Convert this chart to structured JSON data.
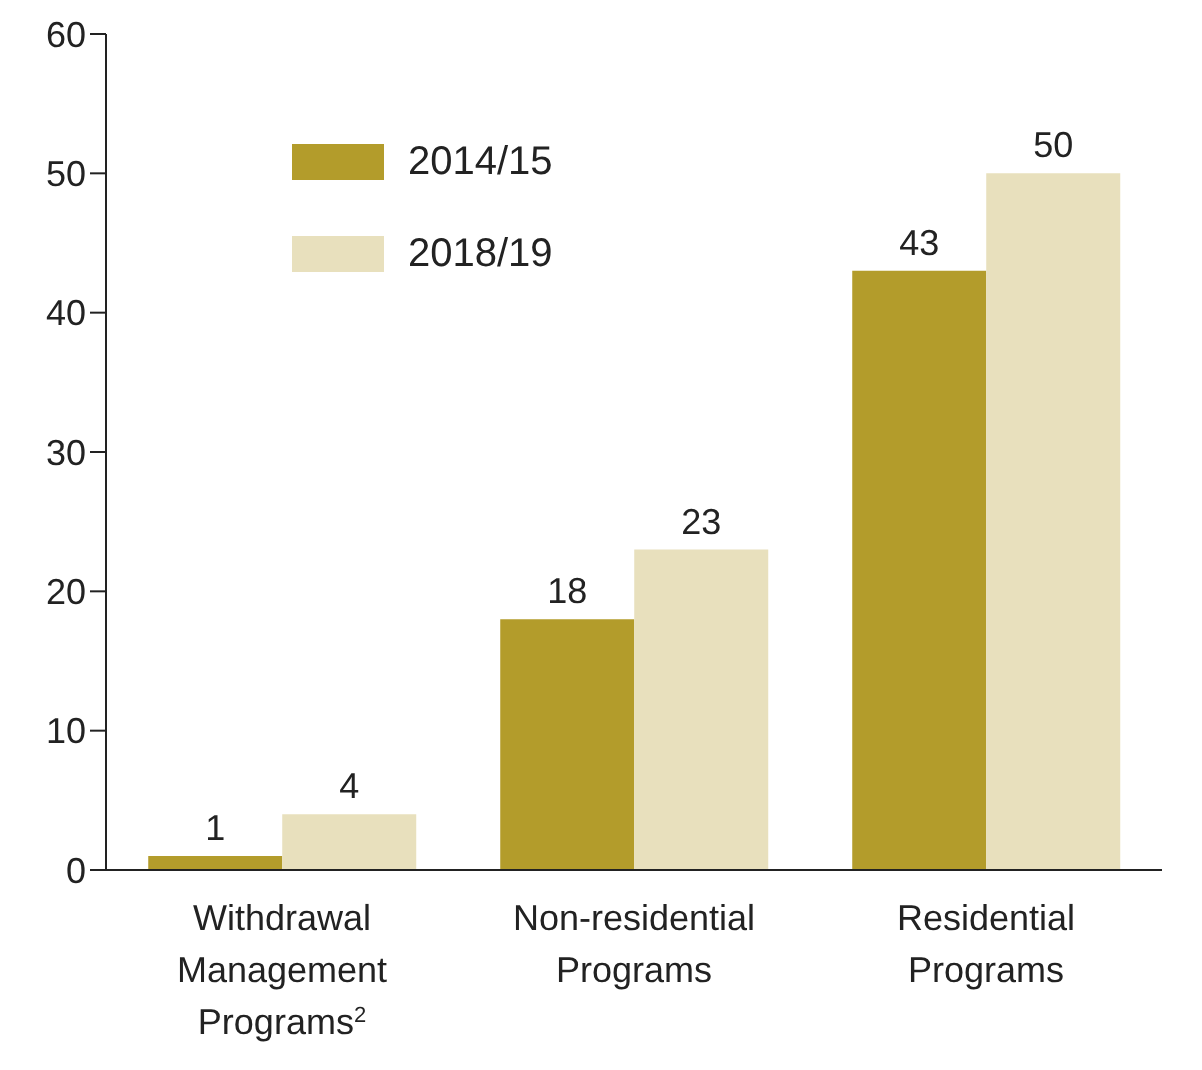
{
  "chart_data": {
    "type": "bar",
    "categories": [
      "Withdrawal Management Programs$^{2}$",
      "Non-residential Programs",
      "Residential Programs"
    ],
    "series": [
      {
        "name": "2014/15",
        "color": "#b39c2b",
        "values": [
          1,
          18,
          43
        ]
      },
      {
        "name": "2018/19",
        "color": "#e8e0bd",
        "values": [
          4,
          23,
          50
        ]
      }
    ],
    "ylim": [
      0,
      60
    ],
    "yticks": [
      0,
      10,
      20,
      30,
      40,
      50,
      60
    ],
    "data_labels": true,
    "grid": false,
    "legend": "top left"
  }
}
